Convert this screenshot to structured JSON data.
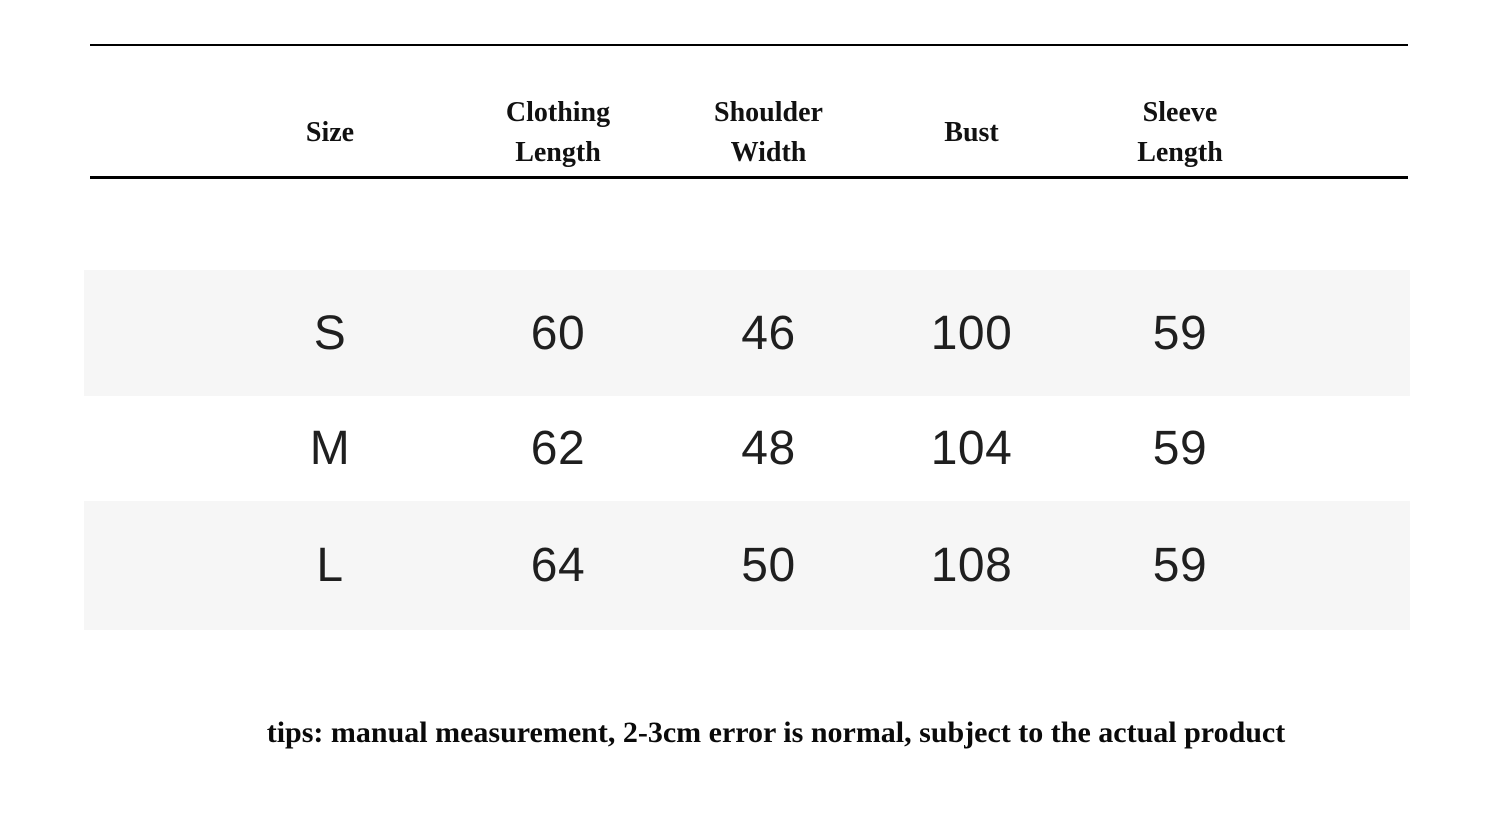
{
  "table": {
    "headers": [
      "Size",
      "Clothing\nLength",
      "Shoulder\nWidth",
      "Bust",
      "Sleeve\nLength"
    ],
    "rows": [
      {
        "cells": [
          "S",
          "60",
          "46",
          "100",
          "59"
        ]
      },
      {
        "cells": [
          "M",
          "62",
          "48",
          "104",
          "59"
        ]
      },
      {
        "cells": [
          "L",
          "64",
          "50",
          "108",
          "59"
        ]
      }
    ]
  },
  "tips": "tips: manual measurement, 2-3cm error is normal, subject to the actual product",
  "colors": {
    "stripe": "#f6f6f6",
    "rule": "#000000",
    "header_text": "#111111",
    "data_text": "#1f1f1f"
  },
  "chart_data": {
    "type": "table",
    "title": "",
    "columns": [
      "Size",
      "Clothing Length",
      "Shoulder Width",
      "Bust",
      "Sleeve Length"
    ],
    "rows": [
      [
        "S",
        60,
        46,
        100,
        59
      ],
      [
        "M",
        62,
        48,
        104,
        59
      ],
      [
        "L",
        64,
        50,
        108,
        59
      ]
    ],
    "units": "cm",
    "footnote": "tips: manual measurement, 2-3cm error is normal, subject to the actual product",
    "layout": {
      "striped_rows": [
        "S",
        "L"
      ],
      "header_rules": true,
      "grid": false
    }
  }
}
